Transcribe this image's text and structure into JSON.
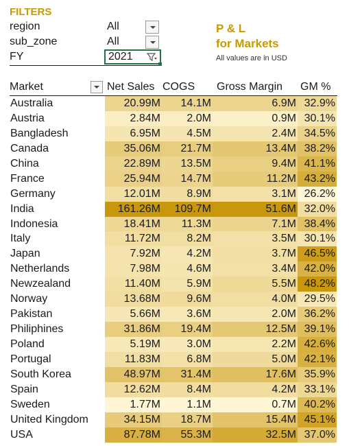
{
  "filters": {
    "title": "FILTERS",
    "region": {
      "label": "region",
      "value": "All"
    },
    "sub_zone": {
      "label": "sub_zone",
      "value": "All"
    },
    "fy": {
      "label": "FY",
      "value": "2021"
    }
  },
  "report": {
    "title_line1": "P & L",
    "title_line2": "for Markets",
    "note": "All values are in USD"
  },
  "table": {
    "headers": {
      "market": "Market",
      "net_sales": "Net Sales",
      "cogs": "COGS",
      "gross_margin": "Gross Margin",
      "gm_pct": "GM %"
    },
    "rows": [
      {
        "market": "Australia",
        "net_sales": "20.99M",
        "cogs": "14.1M",
        "gross_margin": "6.9M",
        "gm_pct": "32.9%"
      },
      {
        "market": "Austria",
        "net_sales": "2.84M",
        "cogs": "2.0M",
        "gross_margin": "0.9M",
        "gm_pct": "30.1%"
      },
      {
        "market": "Bangladesh",
        "net_sales": "6.95M",
        "cogs": "4.5M",
        "gross_margin": "2.4M",
        "gm_pct": "34.5%"
      },
      {
        "market": "Canada",
        "net_sales": "35.06M",
        "cogs": "21.7M",
        "gross_margin": "13.4M",
        "gm_pct": "38.2%"
      },
      {
        "market": "China",
        "net_sales": "22.89M",
        "cogs": "13.5M",
        "gross_margin": "9.4M",
        "gm_pct": "41.1%"
      },
      {
        "market": "France",
        "net_sales": "25.94M",
        "cogs": "14.7M",
        "gross_margin": "11.2M",
        "gm_pct": "43.2%"
      },
      {
        "market": "Germany",
        "net_sales": "12.01M",
        "cogs": "8.9M",
        "gross_margin": "3.1M",
        "gm_pct": "26.2%"
      },
      {
        "market": "India",
        "net_sales": "161.26M",
        "cogs": "109.7M",
        "gross_margin": "51.6M",
        "gm_pct": "32.0%"
      },
      {
        "market": "Indonesia",
        "net_sales": "18.41M",
        "cogs": "11.3M",
        "gross_margin": "7.1M",
        "gm_pct": "38.4%"
      },
      {
        "market": "Italy",
        "net_sales": "11.72M",
        "cogs": "8.2M",
        "gross_margin": "3.5M",
        "gm_pct": "30.1%"
      },
      {
        "market": "Japan",
        "net_sales": "7.92M",
        "cogs": "4.2M",
        "gross_margin": "3.7M",
        "gm_pct": "46.5%"
      },
      {
        "market": "Netherlands",
        "net_sales": "7.98M",
        "cogs": "4.6M",
        "gross_margin": "3.4M",
        "gm_pct": "42.0%"
      },
      {
        "market": "Newzealand",
        "net_sales": "11.40M",
        "cogs": "5.9M",
        "gross_margin": "5.5M",
        "gm_pct": "48.2%"
      },
      {
        "market": "Norway",
        "net_sales": "13.68M",
        "cogs": "9.6M",
        "gross_margin": "4.0M",
        "gm_pct": "29.5%"
      },
      {
        "market": "Pakistan",
        "net_sales": "5.66M",
        "cogs": "3.6M",
        "gross_margin": "2.0M",
        "gm_pct": "36.2%"
      },
      {
        "market": "Philiphines",
        "net_sales": "31.86M",
        "cogs": "19.4M",
        "gross_margin": "12.5M",
        "gm_pct": "39.1%"
      },
      {
        "market": "Poland",
        "net_sales": "5.19M",
        "cogs": "3.0M",
        "gross_margin": "2.2M",
        "gm_pct": "42.6%"
      },
      {
        "market": "Portugal",
        "net_sales": "11.83M",
        "cogs": "6.8M",
        "gross_margin": "5.0M",
        "gm_pct": "42.1%"
      },
      {
        "market": "South Korea",
        "net_sales": "48.97M",
        "cogs": "31.4M",
        "gross_margin": "17.6M",
        "gm_pct": "35.9%"
      },
      {
        "market": "Spain",
        "net_sales": "12.62M",
        "cogs": "8.4M",
        "gross_margin": "4.2M",
        "gm_pct": "33.1%"
      },
      {
        "market": "Sweden",
        "net_sales": "1.77M",
        "cogs": "1.1M",
        "gross_margin": "0.7M",
        "gm_pct": "40.2%"
      },
      {
        "market": "United Kingdom",
        "net_sales": "34.15M",
        "cogs": "18.7M",
        "gross_margin": "15.4M",
        "gm_pct": "45.1%"
      },
      {
        "market": "USA",
        "net_sales": "87.78M",
        "cogs": "55.3M",
        "gross_margin": "32.5M",
        "gm_pct": "37.0%"
      }
    ]
  },
  "colors": {
    "accent": "#c79a00",
    "heat_low": "#fff6d5",
    "heat_high": "#c9970c",
    "fy_border": "#217346"
  }
}
